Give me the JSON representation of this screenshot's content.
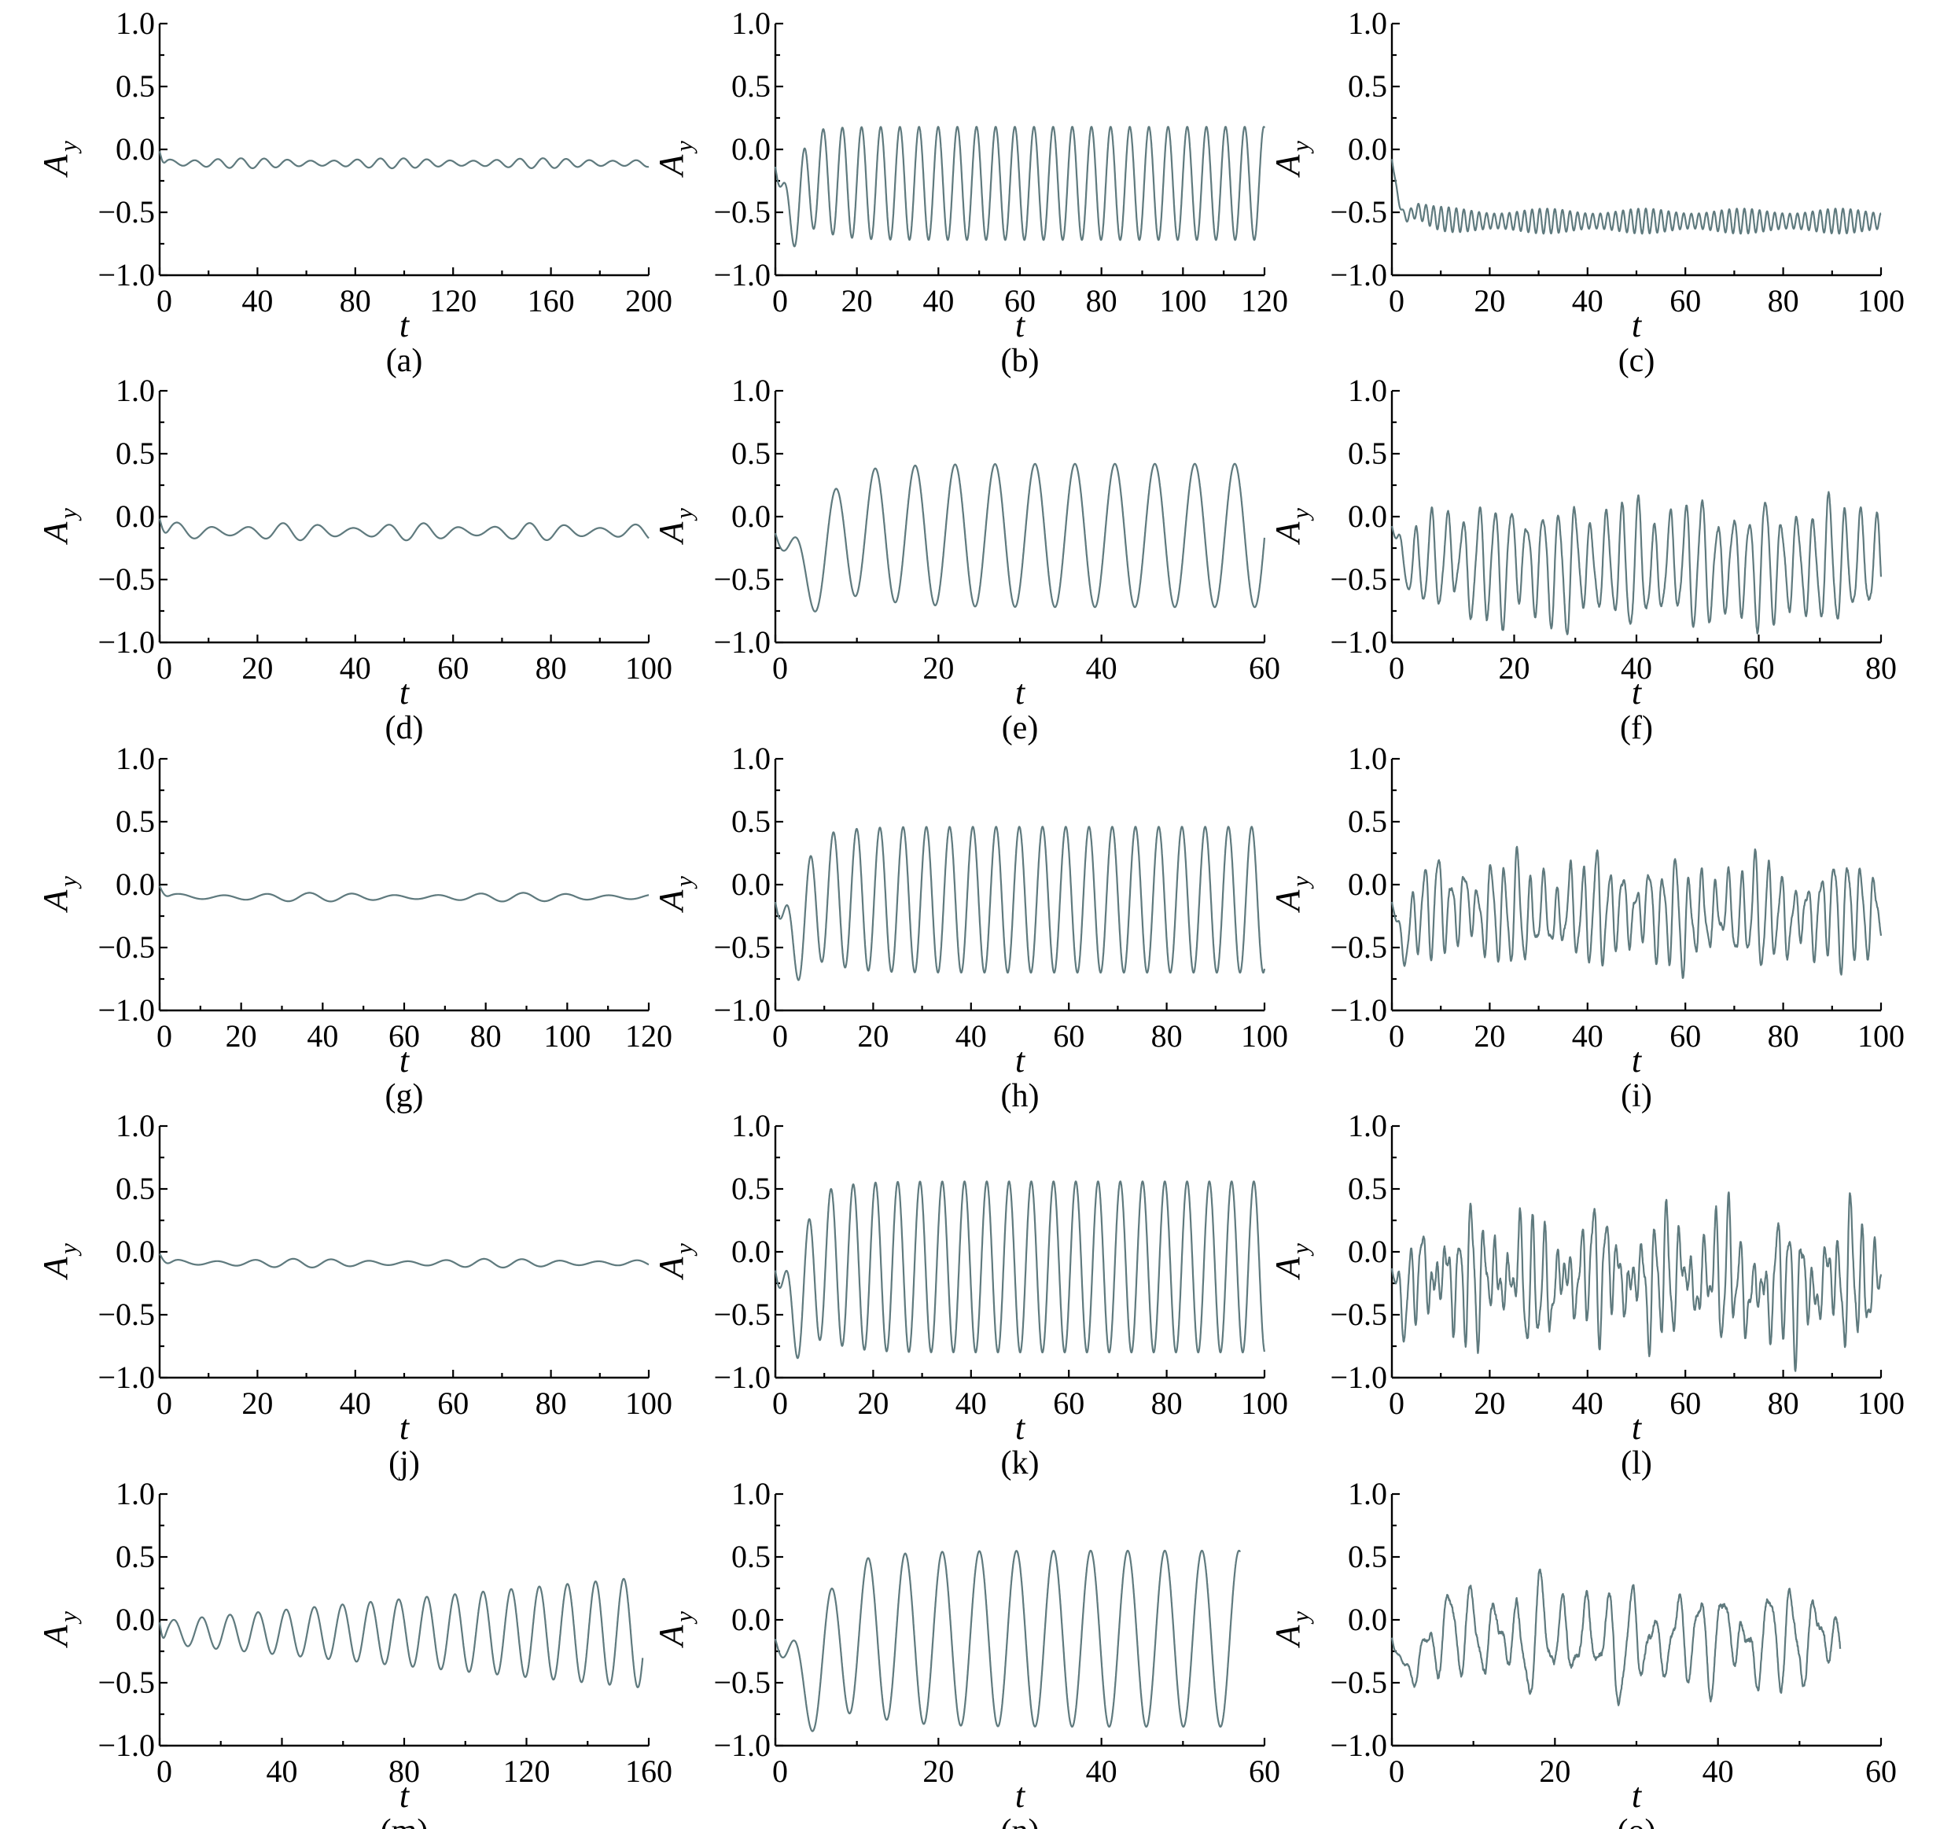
{
  "figure": {
    "common": {
      "type": "line",
      "xlabel": "t",
      "ylabel_main": "A",
      "ylabel_sub": "y",
      "ylim": [
        -1.0,
        1.0
      ],
      "yticks": [
        "1.0",
        "0.5",
        "0.0",
        "-0.5",
        "-1.0"
      ],
      "yticks_values": [
        1.0,
        0.5,
        0.0,
        -0.5,
        -1.0
      ],
      "line_color": "#5f7a7e",
      "grid": false
    }
  },
  "chart_data": [
    {
      "label": "(a)",
      "type": "line",
      "xlim": [
        0,
        200
      ],
      "xticks": [
        0,
        40,
        80,
        120,
        160,
        200
      ],
      "ylim": [
        -1,
        1
      ],
      "signal": {
        "mean": -0.11,
        "amp": 0.03,
        "period": 9.5,
        "beat_amp": 0.01,
        "beat_period": 60,
        "start": 0.0,
        "transient": 4,
        "dip": -0.18,
        "chaos": 0,
        "t_end": 200
      }
    },
    {
      "label": "(b)",
      "type": "line",
      "xlim": [
        0,
        120
      ],
      "xticks": [
        0,
        20,
        40,
        60,
        80,
        100,
        120
      ],
      "ylim": [
        -1,
        1
      ],
      "signal": {
        "mean": -0.27,
        "amp": 0.45,
        "period": 4.7,
        "beat_amp": 0.0,
        "beat_period": 50,
        "start": 0.0,
        "transient": 10,
        "dip": -0.95,
        "chaos": 0,
        "t_end": 120
      }
    },
    {
      "label": "(c)",
      "type": "line",
      "xlim": [
        0,
        100
      ],
      "xticks": [
        0,
        20,
        40,
        60,
        80,
        100
      ],
      "ylim": [
        -1,
        1
      ],
      "signal": {
        "mean": -0.57,
        "amp": 0.08,
        "period": 1.55,
        "beat_amp": 0.02,
        "beat_period": 20,
        "start": 0.0,
        "transient": 6,
        "dip": -0.95,
        "chaos": 0,
        "t_end": 100
      }
    },
    {
      "label": "(d)",
      "type": "line",
      "xlim": [
        0,
        100
      ],
      "xticks": [
        0,
        20,
        40,
        60,
        80,
        100
      ],
      "ylim": [
        -1,
        1
      ],
      "signal": {
        "mean": -0.12,
        "amp": 0.05,
        "period": 7.2,
        "beat_amp": 0.02,
        "beat_period": 25,
        "start": 0.0,
        "transient": 3,
        "dip": -0.2,
        "chaos": 0,
        "t_end": 100
      }
    },
    {
      "label": "(e)",
      "type": "line",
      "xlim": [
        0,
        60
      ],
      "xticks": [
        0,
        20,
        40,
        60
      ],
      "ylim": [
        -1,
        1
      ],
      "signal": {
        "mean": -0.15,
        "amp": 0.57,
        "period": 4.9,
        "beat_amp": 0.0,
        "beat_period": 50,
        "start": 0.0,
        "transient": 10,
        "dip": -0.8,
        "chaos": 0,
        "t_end": 60
      }
    },
    {
      "label": "(f)",
      "type": "line",
      "xlim": [
        0,
        80
      ],
      "xticks": [
        0,
        20,
        40,
        60,
        80
      ],
      "ylim": [
        -1,
        1
      ],
      "signal": {
        "mean": -0.38,
        "amp": 0.4,
        "period": 2.6,
        "beat_amp": 0.08,
        "beat_period": 11,
        "start": 0.0,
        "transient": 8,
        "dip": -0.75,
        "chaos": 0.5,
        "t_end": 80
      }
    },
    {
      "label": "(g)",
      "type": "line",
      "xlim": [
        0,
        120
      ],
      "xticks": [
        0,
        20,
        40,
        60,
        80,
        100,
        120
      ],
      "ylim": [
        -1,
        1
      ],
      "signal": {
        "mean": -0.1,
        "amp": 0.025,
        "period": 10.5,
        "beat_amp": 0.01,
        "beat_period": 50,
        "start": 0.0,
        "transient": 4,
        "dip": -0.15,
        "chaos": 0,
        "t_end": 120
      }
    },
    {
      "label": "(h)",
      "type": "line",
      "xlim": [
        0,
        100
      ],
      "xticks": [
        0,
        20,
        40,
        60,
        80,
        100
      ],
      "ylim": [
        -1,
        1
      ],
      "signal": {
        "mean": -0.12,
        "amp": 0.58,
        "period": 4.75,
        "beat_amp": 0.0,
        "beat_period": 50,
        "start": 0.0,
        "transient": 10,
        "dip": -0.8,
        "chaos": 0,
        "t_end": 100
      }
    },
    {
      "label": "(i)",
      "type": "line",
      "xlim": [
        0,
        100
      ],
      "xticks": [
        0,
        20,
        40,
        60,
        80,
        100
      ],
      "ylim": [
        -1,
        1
      ],
      "signal": {
        "mean": -0.22,
        "amp": 0.3,
        "period": 2.7,
        "beat_amp": 0.1,
        "beat_period": 17,
        "start": 0.0,
        "transient": 7,
        "dip": -0.9,
        "chaos": 0.6,
        "t_end": 100
      }
    },
    {
      "label": "(j)",
      "type": "line",
      "xlim": [
        0,
        100
      ],
      "xticks": [
        0,
        20,
        40,
        60,
        80,
        100
      ],
      "ylim": [
        -1,
        1
      ],
      "signal": {
        "mean": -0.09,
        "amp": 0.025,
        "period": 7.8,
        "beat_amp": 0.01,
        "beat_period": 40,
        "start": 0.0,
        "transient": 4,
        "dip": -0.16,
        "chaos": 0,
        "t_end": 100
      }
    },
    {
      "label": "(k)",
      "type": "line",
      "xlim": [
        0,
        100
      ],
      "xticks": [
        0,
        20,
        40,
        60,
        80,
        100
      ],
      "ylim": [
        -1,
        1
      ],
      "signal": {
        "mean": -0.12,
        "amp": 0.68,
        "period": 4.55,
        "beat_amp": 0.0,
        "beat_period": 50,
        "start": 0.0,
        "transient": 10,
        "dip": -0.85,
        "chaos": 0,
        "t_end": 100
      }
    },
    {
      "label": "(l)",
      "type": "line",
      "xlim": [
        0,
        100
      ],
      "xticks": [
        0,
        20,
        40,
        60,
        80,
        100
      ],
      "ylim": [
        -1,
        1
      ],
      "signal": {
        "mean": -0.2,
        "amp": 0.3,
        "period": 2.5,
        "beat_amp": 0.2,
        "beat_period": 13,
        "start": 0.0,
        "transient": 6,
        "dip": -0.85,
        "chaos": 1.0,
        "t_end": 100
      }
    },
    {
      "label": "(m)",
      "type": "line",
      "xlim": [
        0,
        160
      ],
      "xticks": [
        0,
        40,
        80,
        120,
        160
      ],
      "ylim": [
        -1,
        1
      ],
      "signal": {
        "mean": -0.1,
        "amp": 0.09,
        "period": 9.2,
        "beat_amp": 0.0,
        "beat_period": 50,
        "start": 0.0,
        "transient": 3,
        "dip": -0.2,
        "chaos": 0,
        "t_end": 158,
        "grow_to": 0.44
      }
    },
    {
      "label": "(n)",
      "type": "line",
      "xlim": [
        0,
        60
      ],
      "xticks": [
        0,
        20,
        40,
        60
      ],
      "ylim": [
        -1,
        1
      ],
      "signal": {
        "mean": -0.15,
        "amp": 0.7,
        "period": 4.55,
        "beat_amp": 0.0,
        "beat_period": 50,
        "start": 0.0,
        "transient": 10,
        "dip": -0.9,
        "chaos": 0,
        "t_end": 57
      }
    },
    {
      "label": "(o)",
      "type": "line",
      "xlim": [
        0,
        60
      ],
      "xticks": [
        0,
        20,
        40,
        60
      ],
      "ylim": [
        -1,
        1
      ],
      "signal": {
        "mean": -0.15,
        "amp": 0.28,
        "period": 2.8,
        "beat_amp": 0.12,
        "beat_period": 10,
        "start": 0.0,
        "transient": 6,
        "dip": -0.85,
        "chaos": 0.8,
        "t_end": 55
      }
    }
  ]
}
